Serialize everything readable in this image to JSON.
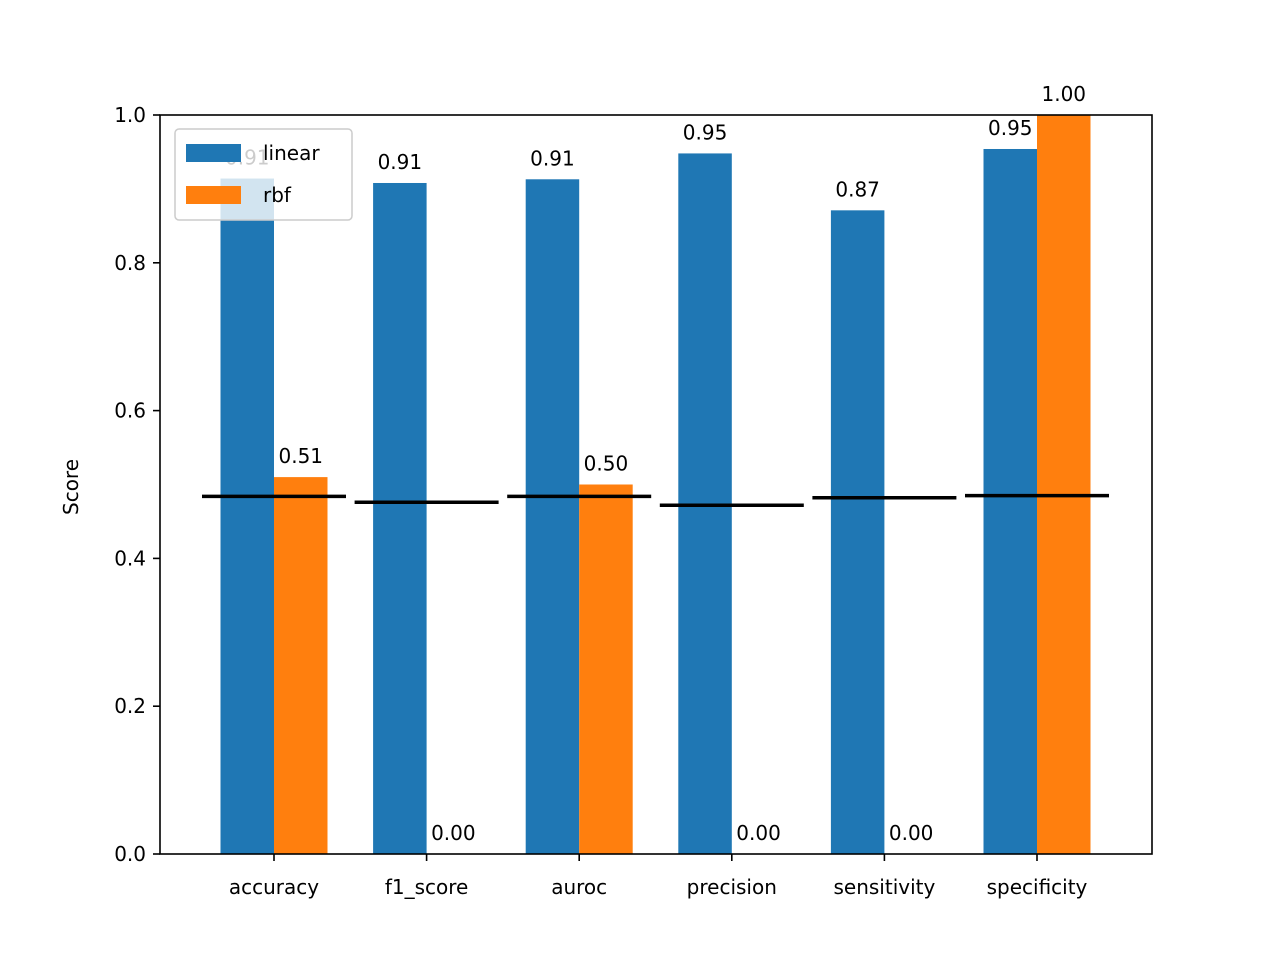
{
  "chart_data": {
    "type": "bar",
    "title": "",
    "xlabel": "",
    "ylabel": "Score",
    "ylim": [
      0,
      1.0
    ],
    "yticks": [
      0.0,
      0.2,
      0.4,
      0.6,
      0.8,
      1.0
    ],
    "ytick_labels": [
      "0.0",
      "0.2",
      "0.4",
      "0.6",
      "0.8",
      "1.0"
    ],
    "categories": [
      "accuracy",
      "f1_score",
      "auroc",
      "precision",
      "sensitivity",
      "specificity"
    ],
    "series": [
      {
        "name": "linear",
        "color": "#1f77b4",
        "values": [
          0.914,
          0.908,
          0.913,
          0.948,
          0.871,
          0.954
        ],
        "labels": [
          "0.91",
          "0.91",
          "0.91",
          "0.95",
          "0.87",
          "0.95"
        ]
      },
      {
        "name": "rbf",
        "color": "#ff7f0e",
        "values": [
          0.51,
          0.0,
          0.5,
          0.0,
          0.0,
          1.0
        ],
        "labels": [
          "0.51",
          "0.00",
          "0.50",
          "0.00",
          "0.00",
          "1.00"
        ]
      }
    ],
    "baselines": {
      "color": "#000000",
      "values": [
        0.484,
        0.476,
        0.484,
        0.472,
        0.482,
        0.485
      ]
    },
    "legend": {
      "placement": "upper-left"
    },
    "grid": false
  }
}
